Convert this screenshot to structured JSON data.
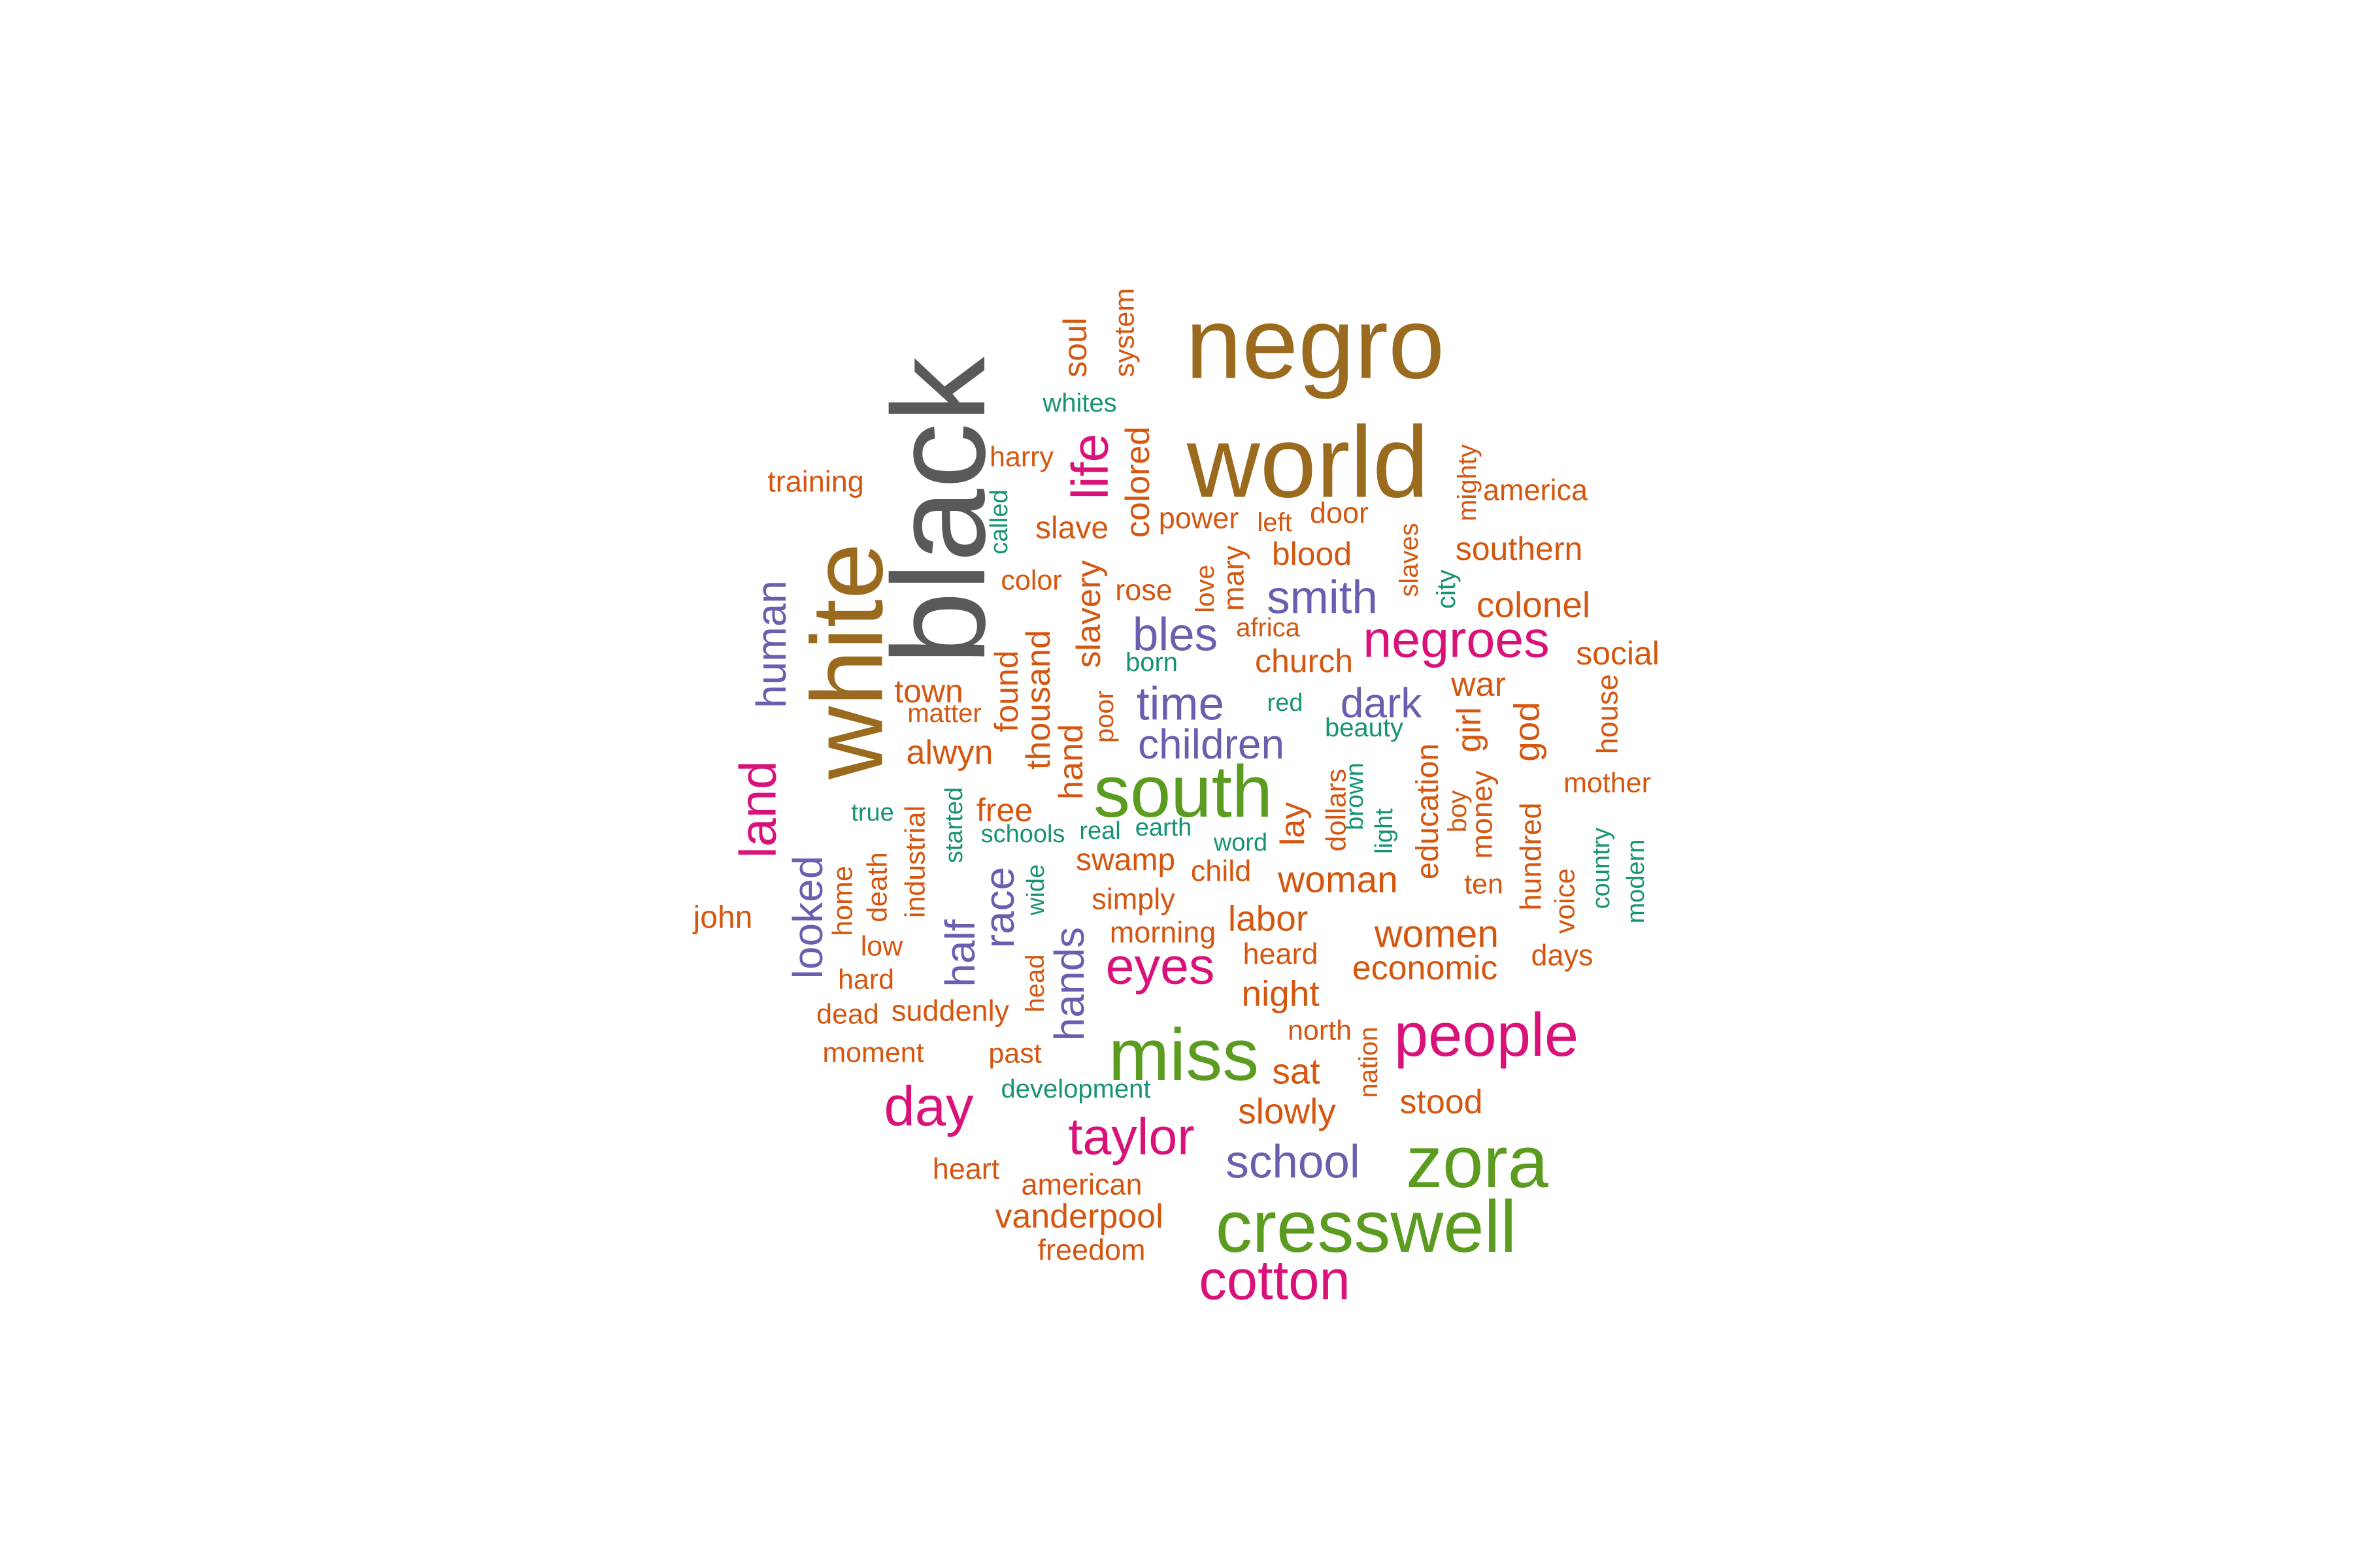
{
  "colors": {
    "dark_gray": "#595959",
    "brown": "#9a6a1e",
    "green": "#5b9b1f",
    "magenta": "#d9127a",
    "purple": "#6a5fae",
    "orange": "#d4560f",
    "teal": "#179373"
  },
  "words": [
    {
      "text": "black",
      "color": "dark_gray"
    },
    {
      "text": "negro",
      "color": "brown"
    },
    {
      "text": "world",
      "color": "brown"
    },
    {
      "text": "white",
      "color": "brown"
    },
    {
      "text": "cresswell",
      "color": "green"
    },
    {
      "text": "zora",
      "color": "green"
    },
    {
      "text": "miss",
      "color": "green"
    },
    {
      "text": "south",
      "color": "green"
    },
    {
      "text": "people",
      "color": "magenta"
    },
    {
      "text": "cotton",
      "color": "magenta"
    },
    {
      "text": "day",
      "color": "magenta"
    },
    {
      "text": "taylor",
      "color": "magenta"
    },
    {
      "text": "eyes",
      "color": "magenta"
    },
    {
      "text": "negroes",
      "color": "magenta"
    },
    {
      "text": "life",
      "color": "magenta"
    },
    {
      "text": "land",
      "color": "magenta"
    },
    {
      "text": "school",
      "color": "purple"
    },
    {
      "text": "smith",
      "color": "purple"
    },
    {
      "text": "time",
      "color": "purple"
    },
    {
      "text": "bles",
      "color": "purple"
    },
    {
      "text": "dark",
      "color": "purple"
    },
    {
      "text": "children",
      "color": "purple"
    },
    {
      "text": "human",
      "color": "purple"
    },
    {
      "text": "looked",
      "color": "purple"
    },
    {
      "text": "half",
      "color": "purple"
    },
    {
      "text": "race",
      "color": "purple"
    },
    {
      "text": "hands",
      "color": "purple"
    },
    {
      "text": "training",
      "color": "orange"
    },
    {
      "text": "harry",
      "color": "orange"
    },
    {
      "text": "soul",
      "color": "orange"
    },
    {
      "text": "system",
      "color": "orange"
    },
    {
      "text": "colored",
      "color": "orange"
    },
    {
      "text": "slave",
      "color": "orange"
    },
    {
      "text": "power",
      "color": "orange"
    },
    {
      "text": "left",
      "color": "orange"
    },
    {
      "text": "door",
      "color": "orange"
    },
    {
      "text": "mighty",
      "color": "orange"
    },
    {
      "text": "america",
      "color": "orange"
    },
    {
      "text": "southern",
      "color": "orange"
    },
    {
      "text": "slaves",
      "color": "orange"
    },
    {
      "text": "blood",
      "color": "orange"
    },
    {
      "text": "mary",
      "color": "orange"
    },
    {
      "text": "love",
      "color": "orange"
    },
    {
      "text": "color",
      "color": "orange"
    },
    {
      "text": "rose",
      "color": "orange"
    },
    {
      "text": "slavery",
      "color": "orange"
    },
    {
      "text": "colonel",
      "color": "orange"
    },
    {
      "text": "africa",
      "color": "orange"
    },
    {
      "text": "church",
      "color": "orange"
    },
    {
      "text": "social",
      "color": "orange"
    },
    {
      "text": "town",
      "color": "orange"
    },
    {
      "text": "matter",
      "color": "orange"
    },
    {
      "text": "found",
      "color": "orange"
    },
    {
      "text": "thousand",
      "color": "orange"
    },
    {
      "text": "poor",
      "color": "orange"
    },
    {
      "text": "war",
      "color": "orange"
    },
    {
      "text": "house",
      "color": "orange"
    },
    {
      "text": "alwyn",
      "color": "orange"
    },
    {
      "text": "hand",
      "color": "orange"
    },
    {
      "text": "girl",
      "color": "orange"
    },
    {
      "text": "god",
      "color": "orange"
    },
    {
      "text": "mother",
      "color": "orange"
    },
    {
      "text": "education",
      "color": "orange"
    },
    {
      "text": "dollars",
      "color": "orange"
    },
    {
      "text": "lay",
      "color": "orange"
    },
    {
      "text": "boy",
      "color": "orange"
    },
    {
      "text": "money",
      "color": "orange"
    },
    {
      "text": "free",
      "color": "orange"
    },
    {
      "text": "industrial",
      "color": "orange"
    },
    {
      "text": "death",
      "color": "orange"
    },
    {
      "text": "home",
      "color": "orange"
    },
    {
      "text": "swamp",
      "color": "orange"
    },
    {
      "text": "child",
      "color": "orange"
    },
    {
      "text": "woman",
      "color": "orange"
    },
    {
      "text": "ten",
      "color": "orange"
    },
    {
      "text": "hundred",
      "color": "orange"
    },
    {
      "text": "voice",
      "color": "orange"
    },
    {
      "text": "john",
      "color": "orange"
    },
    {
      "text": "simply",
      "color": "orange"
    },
    {
      "text": "morning",
      "color": "orange"
    },
    {
      "text": "labor",
      "color": "orange"
    },
    {
      "text": "women",
      "color": "orange"
    },
    {
      "text": "low",
      "color": "orange"
    },
    {
      "text": "hard",
      "color": "orange"
    },
    {
      "text": "heard",
      "color": "orange"
    },
    {
      "text": "economic",
      "color": "orange"
    },
    {
      "text": "days",
      "color": "orange"
    },
    {
      "text": "head",
      "color": "orange"
    },
    {
      "text": "dead",
      "color": "orange"
    },
    {
      "text": "suddenly",
      "color": "orange"
    },
    {
      "text": "night",
      "color": "orange"
    },
    {
      "text": "north",
      "color": "orange"
    },
    {
      "text": "moment",
      "color": "orange"
    },
    {
      "text": "past",
      "color": "orange"
    },
    {
      "text": "sat",
      "color": "orange"
    },
    {
      "text": "nation",
      "color": "orange"
    },
    {
      "text": "stood",
      "color": "orange"
    },
    {
      "text": "slowly",
      "color": "orange"
    },
    {
      "text": "heart",
      "color": "orange"
    },
    {
      "text": "american",
      "color": "orange"
    },
    {
      "text": "vanderpool",
      "color": "orange"
    },
    {
      "text": "freedom",
      "color": "orange"
    },
    {
      "text": "whites",
      "color": "teal"
    },
    {
      "text": "called",
      "color": "teal"
    },
    {
      "text": "city",
      "color": "teal"
    },
    {
      "text": "born",
      "color": "teal"
    },
    {
      "text": "red",
      "color": "teal"
    },
    {
      "text": "beauty",
      "color": "teal"
    },
    {
      "text": "true",
      "color": "teal"
    },
    {
      "text": "started",
      "color": "teal"
    },
    {
      "text": "schools",
      "color": "teal"
    },
    {
      "text": "real",
      "color": "teal"
    },
    {
      "text": "earth",
      "color": "teal"
    },
    {
      "text": "word",
      "color": "teal"
    },
    {
      "text": "brown",
      "color": "teal"
    },
    {
      "text": "light",
      "color": "teal"
    },
    {
      "text": "wide",
      "color": "teal"
    },
    {
      "text": "country",
      "color": "teal"
    },
    {
      "text": "modern",
      "color": "teal"
    },
    {
      "text": "development",
      "color": "teal"
    }
  ]
}
